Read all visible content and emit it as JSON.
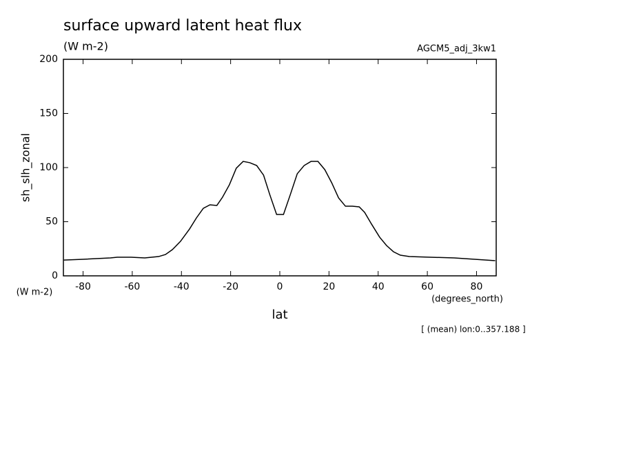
{
  "chart_data": {
    "type": "line",
    "title": "surface upward latent heat flux",
    "subtitle": "(W m-2)",
    "source_label": "AGCM5_adj_3kw1",
    "y_label": "sh_slh_zonal",
    "y_units": "(W m-2)",
    "x_label": "lat",
    "x_units": "(degrees_north)",
    "note": "[ (mean) lon:0..357.188 ]",
    "xlim": [
      -88,
      88
    ],
    "ylim": [
      0,
      200
    ],
    "xticks": [
      -80,
      -60,
      -40,
      -20,
      0,
      20,
      40,
      60,
      80
    ],
    "yticks": [
      0,
      50,
      100,
      150,
      200
    ],
    "grid": false,
    "series": [
      {
        "color": "#000000",
        "x": [
          -87.8,
          -80.0,
          -68.9,
          -66.1,
          -60.5,
          -54.9,
          -49.3,
          -46.5,
          -43.7,
          -40.4,
          -36.7,
          -33.9,
          -31.1,
          -28.4,
          -25.6,
          -23.3,
          -20.5,
          -17.7,
          -14.9,
          -12.2,
          -9.4,
          -6.6,
          -4.1,
          -1.3,
          1.5,
          4.3,
          7.1,
          9.9,
          12.7,
          15.5,
          18.3,
          21.1,
          23.9,
          26.7,
          29.5,
          32.3,
          34.5,
          37.3,
          40.6,
          43.4,
          46.2,
          49.0,
          52.7,
          61.1,
          70.9,
          79.3,
          87.6
        ],
        "values": [
          14.6,
          15.3,
          16.6,
          17.2,
          17.2,
          16.6,
          17.8,
          19.7,
          24.2,
          31.8,
          43.3,
          53.5,
          62.4,
          65.6,
          65.0,
          72.6,
          84.1,
          99.4,
          105.7,
          104.5,
          101.9,
          93.0,
          75.2,
          56.7,
          56.7,
          75.2,
          94.3,
          101.9,
          105.7,
          105.7,
          98.1,
          86.0,
          72.0,
          64.3,
          64.3,
          63.7,
          58.6,
          47.8,
          35.7,
          28.0,
          22.3,
          19.1,
          17.8,
          17.2,
          16.6,
          15.3,
          14.0
        ]
      }
    ]
  }
}
